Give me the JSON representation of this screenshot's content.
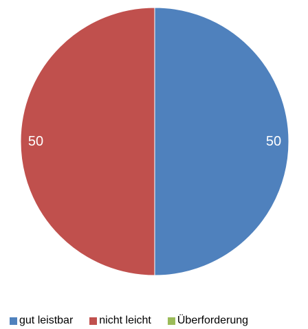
{
  "chart_data": {
    "type": "pie",
    "title": "",
    "categories": [
      "gut leistbar",
      "nicht leicht",
      "Überforderung"
    ],
    "values": [
      50,
      50,
      0
    ],
    "data_labels": [
      "50",
      "50",
      ""
    ],
    "colors": [
      "#4f81bd",
      "#c0504d",
      "#9bbb59"
    ],
    "start_angle": "12 o'clock",
    "direction": "clockwise",
    "legend_position": "bottom"
  }
}
